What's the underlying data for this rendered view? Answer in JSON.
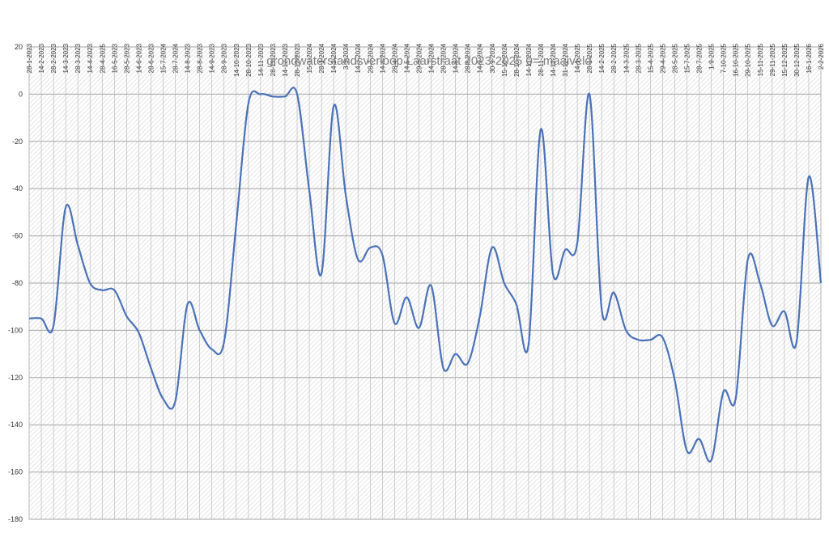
{
  "chart_data": {
    "type": "line",
    "title": "grondwaterstandsverloop Laarstraat 2023-2025  0= maaiveld",
    "xlabel": "",
    "ylabel": "",
    "ylim": [
      -180,
      20
    ],
    "yticks": [
      20,
      0,
      -20,
      -40,
      -60,
      -80,
      -100,
      -120,
      -140,
      -160,
      -180
    ],
    "grid": true,
    "legend": "none",
    "line_color": "#4a72b8",
    "categories": [
      "28-1-2023",
      "14-2-2023",
      "28-2-2023",
      "14-3-2023",
      "28-3-2023",
      "14-4-2023",
      "28-4-2025",
      "16-5-2023",
      "28-5-2023",
      "14-6-2023",
      "28-6-2023",
      "15-7-2024",
      "28-7-2024",
      "14-8-2023",
      "28-8-2023",
      "14-9-2023",
      "28-9-2023",
      "14-10-2023",
      "28-10-2023",
      "14-11-2023",
      "28-11-2023",
      "14-12-2023",
      "28-12-2023",
      "15-1-2024",
      "28-1-2024",
      "14-2-2024",
      "3-3-2024",
      "14-3-2024",
      "28-3-2024",
      "14-4-2024",
      "28-4-2024",
      "14-5-2024",
      "29-5-2024",
      "14-7-2024",
      "28-7-2024",
      "14-8-2024",
      "28-8-2024",
      "14-9-2024",
      "30-9-2024",
      "15-10-2024",
      "28-10-2024",
      "14-11-2024",
      "28-11-2024",
      "14-12-2024",
      "31-12-2024",
      "14-1-2025",
      "28-1-2025",
      "14-2-2025",
      "28-2-2025",
      "14-3-2025",
      "28-3-2025",
      "15-4-2025",
      "29-4-2025",
      "28-5-2025",
      "15-7-2025",
      "28-7-2025",
      "1-9-2025",
      "7-10-2025",
      "16-10-2025",
      "29-10-2025",
      "15-11-2025",
      "29-11-2025",
      "15-12-2025",
      "30-12-2025",
      "16-1-2026",
      "2-2-2026"
    ],
    "series": [
      {
        "values": [
          -95,
          -95,
          -98,
          -48,
          -64,
          -80,
          -83,
          -83,
          -94,
          -101,
          -116,
          -129,
          -130,
          -89,
          -100,
          -108,
          -105,
          -55,
          -4,
          0,
          -1,
          -1,
          0,
          -41,
          -76,
          -5,
          -43,
          -70,
          -65,
          -68,
          -97,
          -86,
          -99,
          -81,
          -116,
          -110,
          -114,
          -94,
          -65,
          -80,
          -89,
          -106,
          -15,
          -76,
          -66,
          -63,
          0,
          -91,
          -84,
          -100,
          -104,
          -104,
          -103,
          -121,
          -151,
          -146,
          -155,
          -126,
          -129,
          -70,
          -80,
          -98,
          -92,
          -105,
          -35,
          -80
        ]
      }
    ]
  }
}
